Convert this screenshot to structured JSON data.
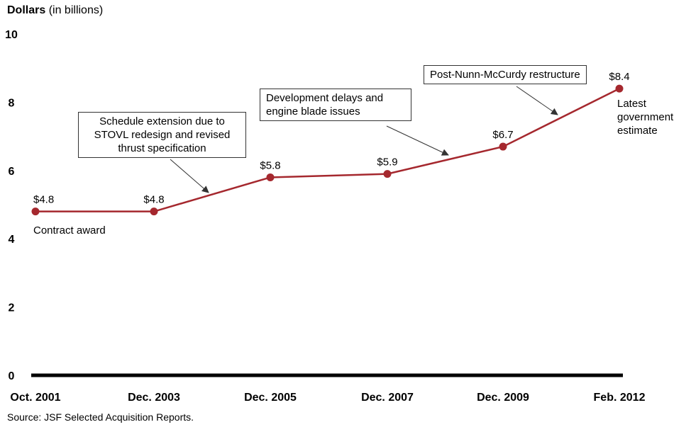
{
  "chart_data": {
    "type": "line",
    "ylabel_bold": "Dollars",
    "ylabel_rest": "(in billions)",
    "xlabel": "",
    "ylim": [
      0,
      10
    ],
    "yticks": [
      0,
      2,
      4,
      6,
      8,
      10
    ],
    "categories": [
      "Oct. 2001",
      "Dec. 2003",
      "Dec. 2005",
      "Dec. 2007",
      "Dec. 2009",
      "Feb. 2012"
    ],
    "values": [
      4.8,
      4.8,
      5.8,
      5.9,
      6.7,
      8.4
    ],
    "value_labels": [
      "$4.8",
      "$4.8",
      "$5.8",
      "$5.9",
      "$6.7",
      "$8.4"
    ],
    "line_color": "#a5282e",
    "grid": false,
    "legend": "none",
    "annotations": {
      "contract_award": "Contract award",
      "schedule_extension": "Schedule extension due to STOVL redesign and revised thrust specification",
      "development_delays": "Development delays and engine blade issues",
      "restructure": "Post-Nunn-McCurdy restructure",
      "latest_estimate": "Latest government estimate"
    }
  },
  "source": "Source: JSF Selected Acquisition Reports."
}
